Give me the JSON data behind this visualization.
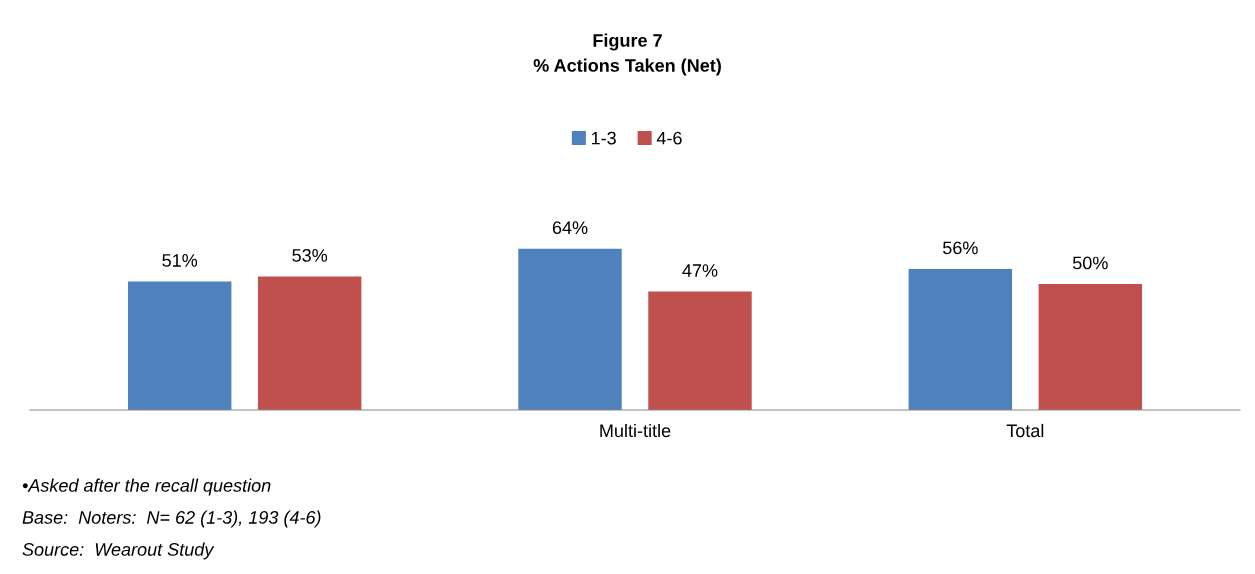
{
  "chart_data": {
    "type": "bar",
    "title": "Figure 7",
    "subtitle": "% Actions Taken (Net)",
    "categories": [
      null,
      "Multi-title",
      "Total"
    ],
    "series": [
      {
        "name": "1-3",
        "color": "#4f81bd",
        "values": [
          51,
          64,
          56
        ],
        "value_labels": [
          "51%",
          "64%",
          "56%"
        ]
      },
      {
        "name": "4-6",
        "color": "#c0504d",
        "values": [
          53,
          47,
          50
        ],
        "value_labels": [
          "53%",
          "47%",
          "50%"
        ]
      }
    ],
    "legend": "top",
    "grid": false,
    "annotations": [
      "•Asked after the recall question",
      "Base:  Noters:  N= 62 (1-3), 193 (4-6)",
      "Source:  Wearout Study"
    ]
  }
}
